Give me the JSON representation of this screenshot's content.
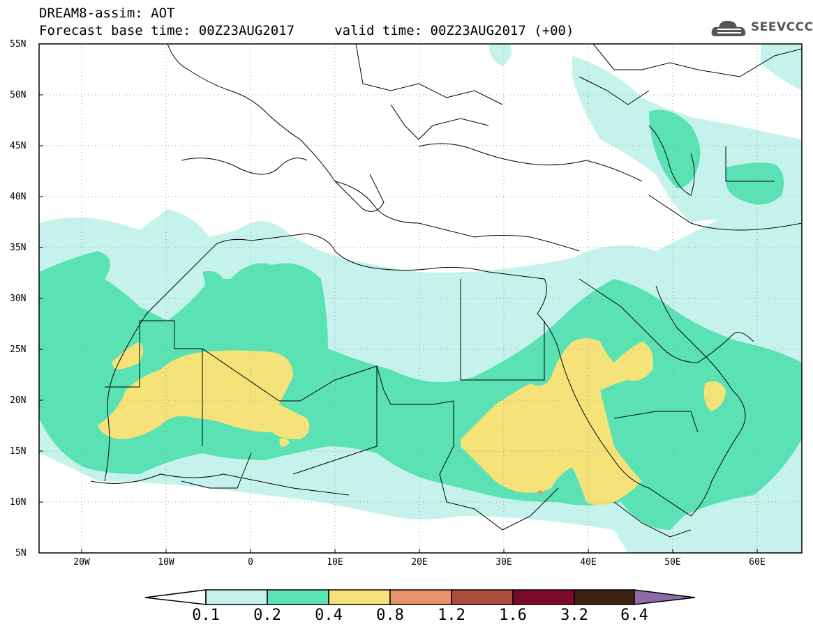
{
  "header": {
    "line1": "DREAM8-assim: AOT",
    "line2": "Forecast base time: 00Z23AUG2017     valid time: 00Z23AUG2017 (+00)"
  },
  "logo": {
    "text": "SEEVCCC",
    "icon": "cloud-icon"
  },
  "map": {
    "lon_range": [
      -25,
      65
    ],
    "lat_range": [
      5,
      55
    ],
    "lat_labels": [
      "55N",
      "50N",
      "45N",
      "40N",
      "35N",
      "30N",
      "25N",
      "20N",
      "15N",
      "10N",
      "5N"
    ],
    "lon_labels": [
      "20W",
      "10W",
      "0",
      "10E",
      "20E",
      "30E",
      "40E",
      "50E",
      "60E"
    ],
    "grid": "dotted"
  },
  "colorbar": {
    "colors": [
      "#c5f3ec",
      "#5ae2b4",
      "#f5e37a",
      "#e8926a",
      "#a84c3c",
      "#7a0a27",
      "#3d2312",
      "#8e6ba7"
    ],
    "labels": [
      "0.1",
      "0.2",
      "0.4",
      "0.8",
      "1.2",
      "1.6",
      "3.2",
      "6.4"
    ]
  }
}
